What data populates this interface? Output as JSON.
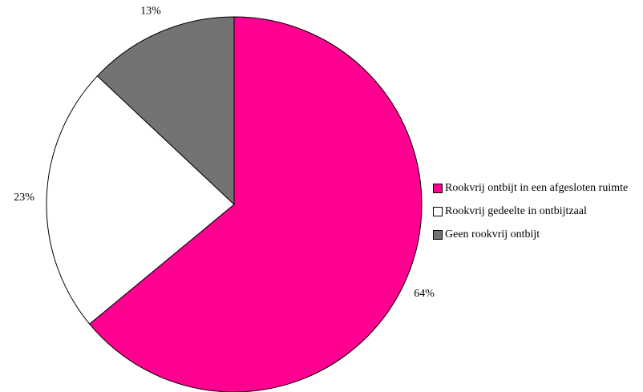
{
  "chart_data": {
    "type": "pie",
    "categories": [
      "Rookvrij ontbijt in een afgesloten ruimte",
      "Rookvrij gedeelte in ontbijtzaal",
      "Geen rookvrij ontbijt"
    ],
    "values": [
      64,
      23,
      13
    ],
    "value_labels": [
      "64%",
      "23%",
      "13%"
    ],
    "colors": [
      "#ff0090",
      "#ffffff",
      "#737373"
    ],
    "legend": "right"
  }
}
